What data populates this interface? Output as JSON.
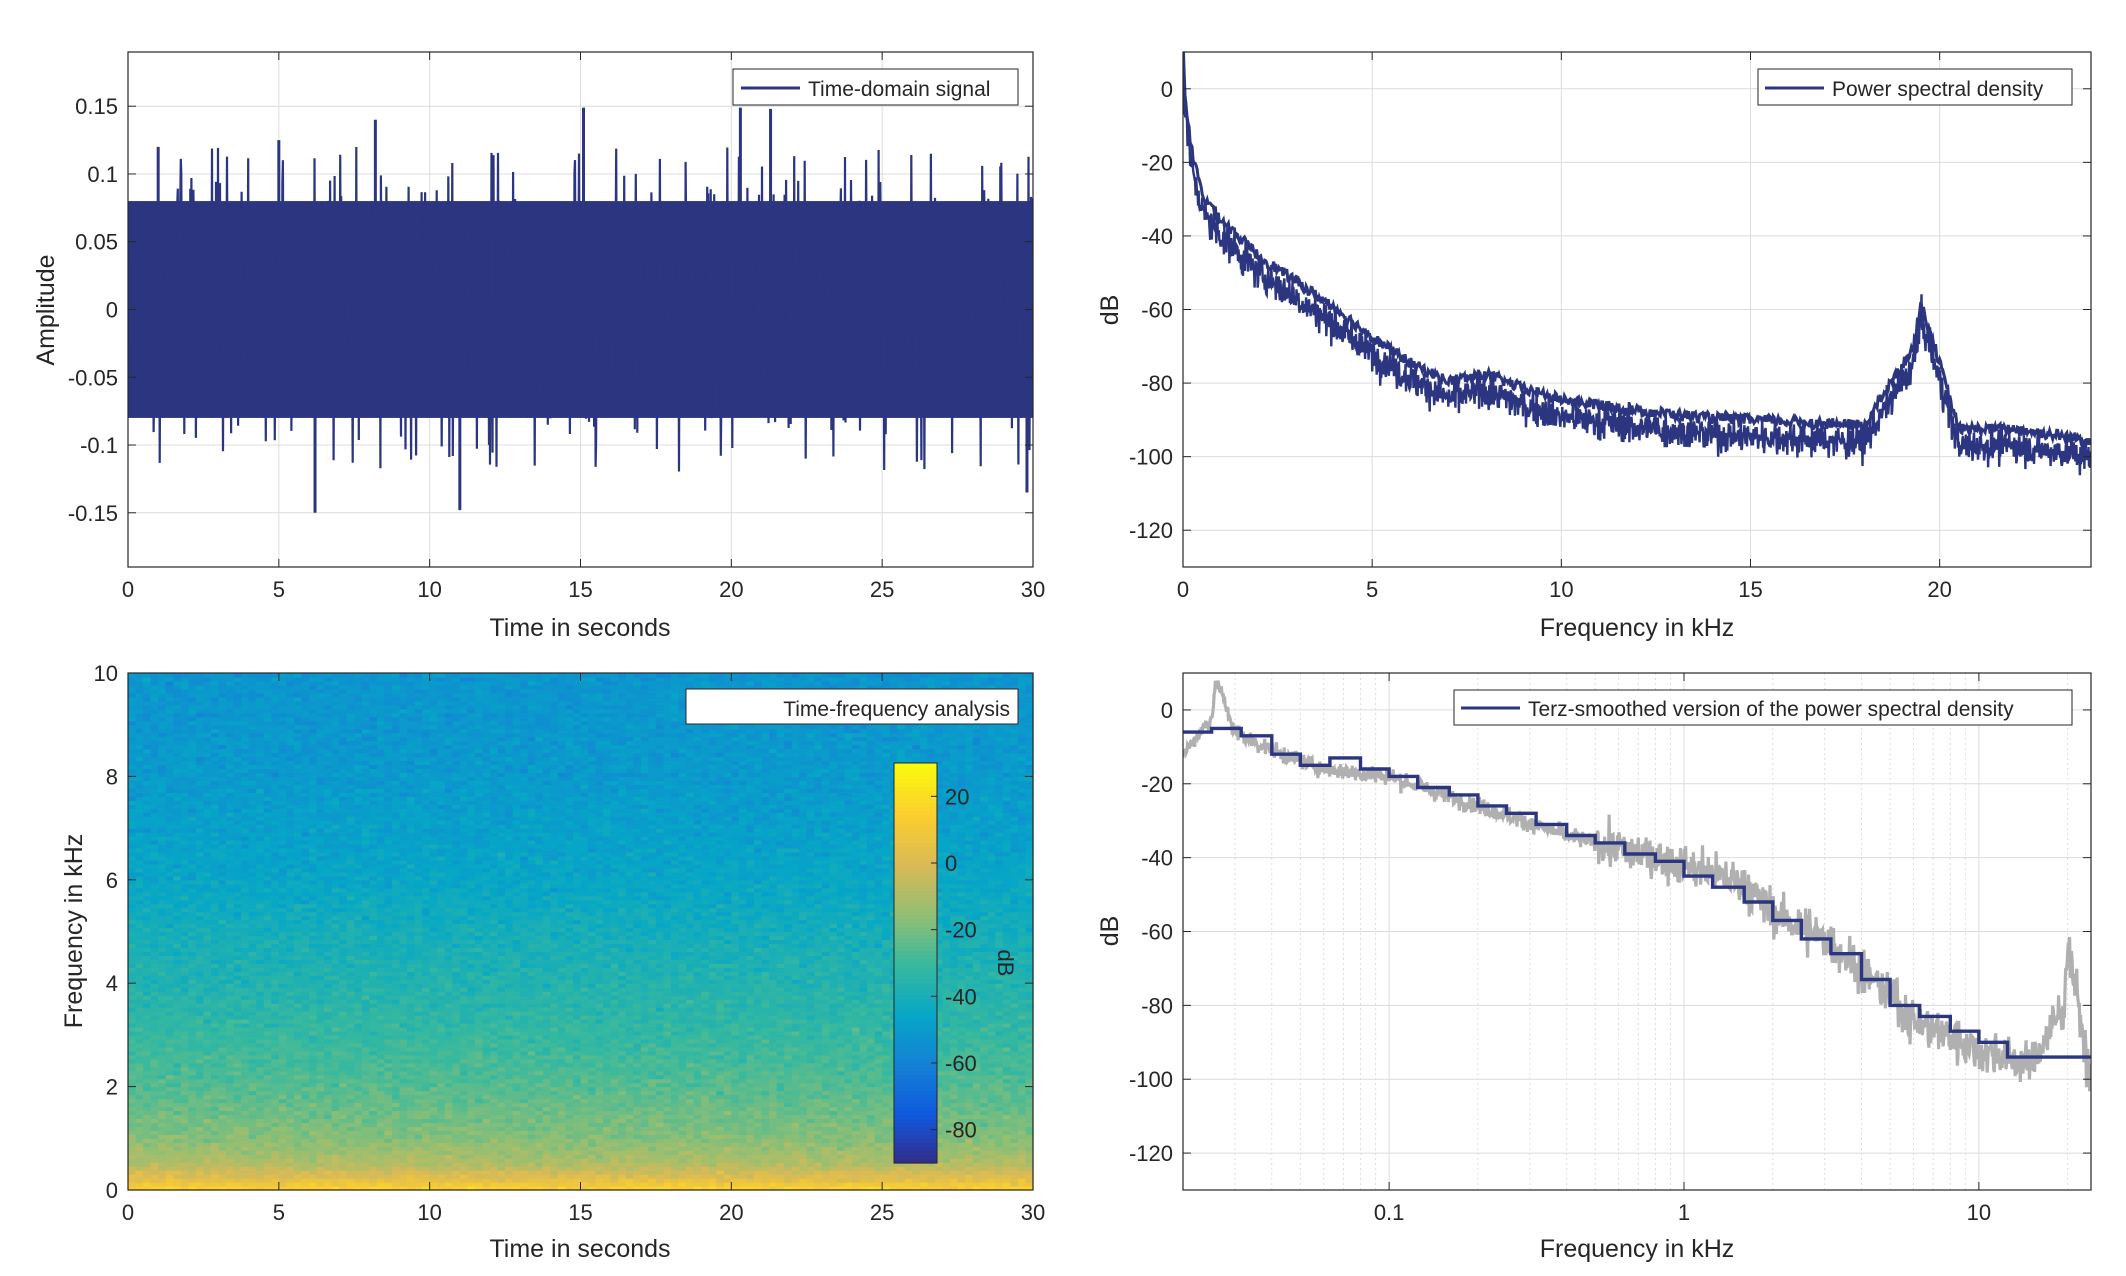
{
  "figure": {
    "background": "#ffffff",
    "axis_color": "#262626",
    "grid_color": "#dcdcdc",
    "series_color": "#2b3580",
    "raw_color": "#b0b0b0"
  },
  "chart_data": [
    {
      "id": "time_domain",
      "type": "line",
      "title": "",
      "xlabel": "Time in seconds",
      "ylabel": "Amplitude",
      "xlim": [
        0,
        30
      ],
      "ylim": [
        -0.19,
        0.19
      ],
      "xticks": [
        0,
        5,
        10,
        15,
        20,
        25,
        30
      ],
      "xtick_labels": [
        "0",
        "5",
        "10",
        "15",
        "20",
        "25",
        "30"
      ],
      "yticks": [
        0.15,
        0.1,
        0.05,
        0,
        -0.05,
        -0.1,
        -0.15
      ],
      "ytick_labels": [
        "0.15",
        "0.1",
        "0.05",
        "0",
        "-0.05",
        "-0.1",
        "-0.15"
      ],
      "grid": true,
      "legend": {
        "placement": "top-right",
        "entries": [
          "Time-domain signal"
        ]
      },
      "series": [
        {
          "name": "Time-domain signal",
          "color": "#2b3580",
          "description_values": {
            "dense_band_amplitude": [
              -0.08,
              0.08
            ],
            "peaks": [
              {
                "x": 1.0,
                "y": 0.12
              },
              {
                "x": 5.0,
                "y": 0.125
              },
              {
                "x": 6.2,
                "y": -0.15
              },
              {
                "x": 8.2,
                "y": 0.14
              },
              {
                "x": 11.0,
                "y": -0.148
              },
              {
                "x": 15.1,
                "y": 0.149
              },
              {
                "x": 20.3,
                "y": 0.149
              },
              {
                "x": 21.3,
                "y": 0.148
              },
              {
                "x": 29.8,
                "y": -0.135
              }
            ]
          }
        }
      ]
    },
    {
      "id": "psd",
      "type": "line",
      "title": "",
      "xlabel": "Frequency in kHz",
      "ylabel": "dB",
      "xlim": [
        0,
        24
      ],
      "ylim": [
        -130,
        10
      ],
      "xticks": [
        0,
        5,
        10,
        15,
        20
      ],
      "xtick_labels": [
        "0",
        "5",
        "10",
        "15",
        "20"
      ],
      "yticks": [
        0,
        -20,
        -40,
        -60,
        -80,
        -100,
        -120
      ],
      "ytick_labels": [
        "0",
        "-20",
        "-40",
        "-60",
        "-80",
        "-100",
        "-120"
      ],
      "grid": true,
      "legend": {
        "placement": "top-right",
        "entries": [
          "Power spectral density"
        ]
      },
      "series": [
        {
          "name": "Power spectral density",
          "color": "#2b3580",
          "x": [
            0,
            0.05,
            0.2,
            0.5,
            1,
            2,
            3,
            4,
            5,
            6,
            7,
            8,
            9,
            10,
            12,
            14,
            16,
            18,
            19.3,
            19.5,
            19.8,
            20.5,
            22,
            24
          ],
          "y": [
            8,
            -5,
            -20,
            -33,
            -40,
            -50,
            -57,
            -64,
            -72,
            -79,
            -84,
            -82,
            -86,
            -89,
            -92,
            -94,
            -95,
            -96,
            -75,
            -63,
            -72,
            -97,
            -97,
            -100
          ]
        }
      ]
    },
    {
      "id": "spectrogram",
      "type": "heatmap",
      "title": "",
      "xlabel": "Time in seconds",
      "ylabel": "Frequency in kHz",
      "xlim": [
        0,
        30
      ],
      "ylim": [
        0,
        10
      ],
      "xticks": [
        0,
        5,
        10,
        15,
        20,
        25,
        30
      ],
      "xtick_labels": [
        "0",
        "5",
        "10",
        "15",
        "20",
        "25",
        "30"
      ],
      "yticks": [
        0,
        2,
        4,
        6,
        8,
        10
      ],
      "ytick_labels": [
        "0",
        "2",
        "4",
        "6",
        "8",
        "10"
      ],
      "legend": {
        "placement": "top-right",
        "entries": [
          "Time-frequency analysis"
        ]
      },
      "colorbar": {
        "label": "dB",
        "range": [
          -90,
          30
        ],
        "ticks": [
          20,
          0,
          -20,
          -40,
          -60,
          -80
        ],
        "tick_labels": [
          "20",
          "0",
          "-20",
          "-40",
          "-60",
          "-80"
        ],
        "colormap": "parula"
      },
      "level_profile": {
        "frequency_khz": [
          0,
          0.2,
          0.5,
          1,
          2,
          3,
          4,
          5,
          6,
          8,
          10
        ],
        "db": [
          18,
          5,
          -8,
          -17,
          -25,
          -31,
          -36,
          -40,
          -45,
          -50,
          -52
        ]
      }
    },
    {
      "id": "terz",
      "type": "line",
      "title": "",
      "xlabel": "Frequency in kHz",
      "ylabel": "dB",
      "xscale": "log",
      "xlim": [
        0.02,
        24
      ],
      "ylim": [
        -130,
        10
      ],
      "xticks": [
        0.1,
        1,
        10
      ],
      "xtick_labels": [
        "0.1",
        "1",
        "10"
      ],
      "yticks": [
        0,
        -20,
        -40,
        -60,
        -80,
        -100,
        -120
      ],
      "ytick_labels": [
        "0",
        "-20",
        "-40",
        "-60",
        "-80",
        "-100",
        "-120"
      ],
      "grid": true,
      "legend": {
        "placement": "top-right",
        "entries": [
          "Terz-smoothed version of the power spectral density"
        ]
      },
      "series": [
        {
          "name": "Terz-smoothed version of the power spectral density",
          "color": "#2b3580",
          "style": "step",
          "x": [
            0.02,
            0.025,
            0.0315,
            0.04,
            0.05,
            0.063,
            0.08,
            0.1,
            0.125,
            0.16,
            0.2,
            0.25,
            0.315,
            0.4,
            0.5,
            0.63,
            0.8,
            1,
            1.25,
            1.6,
            2,
            2.5,
            3.15,
            4,
            5,
            6.3,
            8,
            10,
            12.5,
            16,
            20,
            24
          ],
          "y": [
            -6,
            -5,
            -7,
            -12,
            -15,
            -13,
            -16,
            -18,
            -21,
            -23,
            -26,
            -28,
            -31,
            -34,
            -36,
            -39,
            -41,
            -45,
            -48,
            -52,
            -57,
            -62,
            -66,
            -73,
            -80,
            -83,
            -87,
            -90,
            -94,
            -94,
            -94,
            -94
          ]
        },
        {
          "name": "",
          "color": "#b0b0b0",
          "x": [
            0.02,
            0.025,
            0.026,
            0.03,
            0.04,
            0.06,
            0.1,
            0.2,
            0.4,
            0.8,
            1.0,
            1.6,
            2.0,
            3.0,
            4.0,
            6.0,
            10.0,
            15.0,
            19.5,
            20.0,
            24.0
          ],
          "y": [
            -12,
            -2,
            8,
            -6,
            -11,
            -16,
            -18,
            -26,
            -34,
            -40,
            -42,
            -47,
            -55,
            -62,
            -70,
            -84,
            -92,
            -96,
            -80,
            -62,
            -102
          ]
        }
      ]
    }
  ]
}
